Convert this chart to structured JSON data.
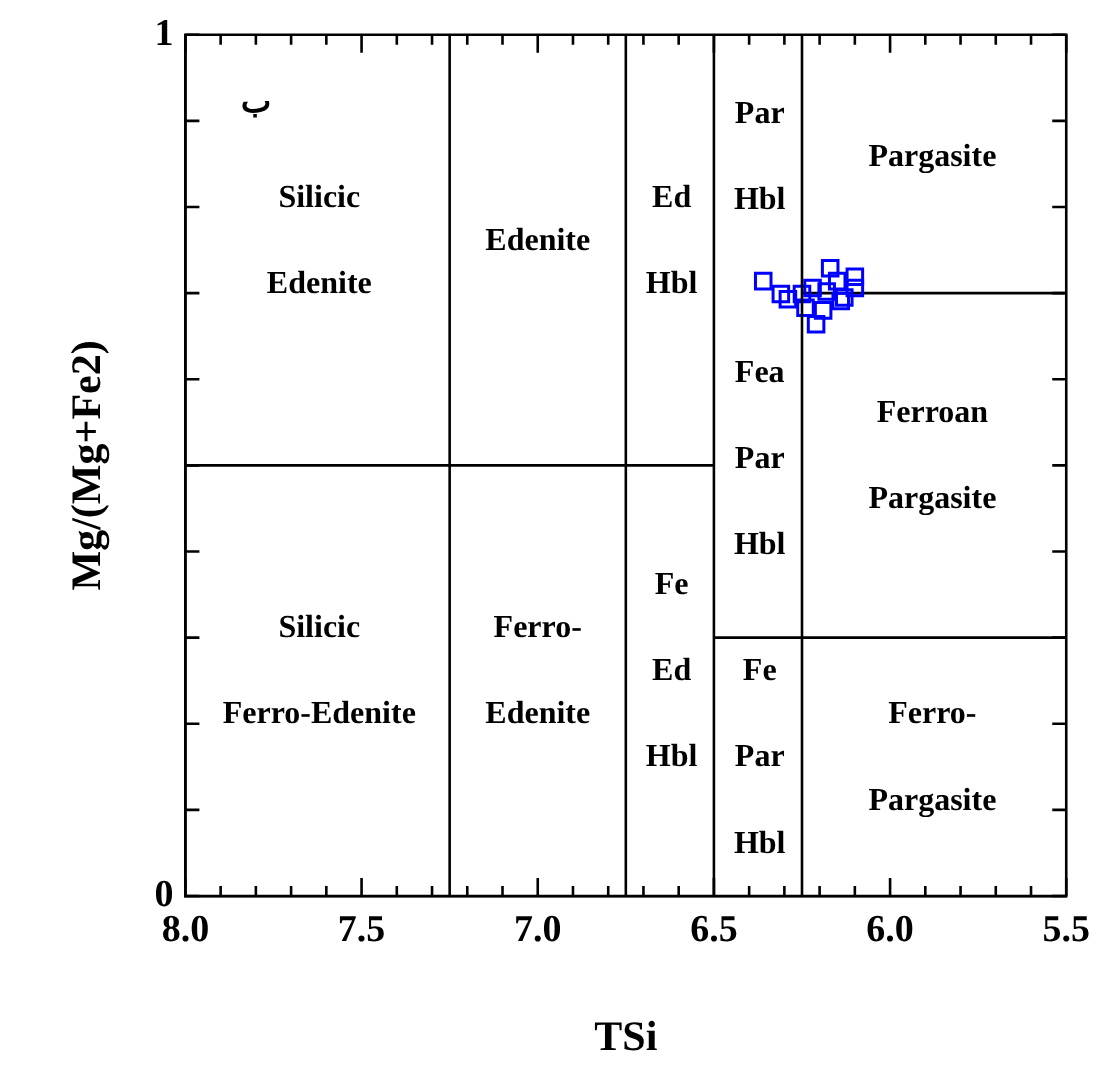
{
  "chart_data": {
    "type": "scatter",
    "xlabel": "TSi",
    "ylabel": "Mg/(Mg+Fe2)",
    "xlim": [
      8,
      5.5
    ],
    "ylim": [
      0,
      1
    ],
    "xticks": [
      {
        "value": 8,
        "label": "8.0"
      },
      {
        "value": 7.9,
        "label": null
      },
      {
        "value": 7.8,
        "label": null
      },
      {
        "value": 7.7,
        "label": null
      },
      {
        "value": 7.6,
        "label": null
      },
      {
        "value": 7.5,
        "label": "7.5"
      },
      {
        "value": 7.4,
        "label": null
      },
      {
        "value": 7.3,
        "label": null
      },
      {
        "value": 7.2,
        "label": null
      },
      {
        "value": 7.1,
        "label": null
      },
      {
        "value": 7,
        "label": "7.0"
      },
      {
        "value": 6.9,
        "label": null
      },
      {
        "value": 6.8,
        "label": null
      },
      {
        "value": 6.7,
        "label": null
      },
      {
        "value": 6.6,
        "label": null
      },
      {
        "value": 6.5,
        "label": "6.5"
      },
      {
        "value": 6.4,
        "label": null
      },
      {
        "value": 6.3,
        "label": null
      },
      {
        "value": 6.2,
        "label": null
      },
      {
        "value": 6.1,
        "label": null
      },
      {
        "value": 6,
        "label": "6.0"
      },
      {
        "value": 5.9,
        "label": null
      },
      {
        "value": 5.8,
        "label": null
      },
      {
        "value": 5.7,
        "label": null
      },
      {
        "value": 5.6,
        "label": null
      },
      {
        "value": 5.5,
        "label": "5.5"
      }
    ],
    "yticks": [
      0,
      {
        "value": 0.1,
        "label": null
      },
      {
        "value": 0.2,
        "label": null
      },
      {
        "value": 0.3,
        "label": null
      },
      {
        "value": 0.4,
        "label": null
      },
      {
        "value": 0.5,
        "label": null
      },
      {
        "value": 0.6,
        "label": null
      },
      {
        "value": 0.7,
        "label": null
      },
      {
        "value": 0.8,
        "label": null
      },
      {
        "value": 0.9,
        "label": null
      },
      1
    ],
    "grid": false,
    "legend": false,
    "series": [
      {
        "type": "scatter",
        "marker": "square",
        "color": "#0000ff",
        "x": [
          6.36,
          6.31,
          6.29,
          6.25,
          6.22,
          6.21,
          6.17,
          6.18,
          6.15,
          6.14,
          6.13,
          6.1,
          6.1,
          6.24,
          6.19
        ],
        "values": [
          0.714,
          0.699,
          0.693,
          0.699,
          0.706,
          0.664,
          0.729,
          0.702,
          0.714,
          0.691,
          0.695,
          0.719,
          0.706,
          0.683,
          0.68
        ]
      },
      {
        "type": "line",
        "marker": "none",
        "color": "#000000",
        "x": [
          8,
          6.5
        ],
        "values": [
          0.5,
          0.5
        ]
      },
      {
        "type": "line",
        "marker": "none",
        "color": "#000000",
        "x": [
          6.25,
          5.5
        ],
        "values": [
          0.7,
          0.7
        ]
      },
      {
        "type": "line",
        "marker": "none",
        "color": "#000000",
        "x": [
          6.5,
          5.5
        ],
        "values": [
          0.3,
          0.3
        ]
      }
    ],
    "ref_lines": [
      {
        "axis": "x",
        "value": 7.25,
        "color": "#000000"
      },
      {
        "axis": "x",
        "value": 6.75,
        "color": "#000000"
      },
      {
        "axis": "x",
        "value": 6.5,
        "color": "#000000"
      },
      {
        "axis": "x",
        "value": 6.25,
        "color": "#000000"
      }
    ],
    "annotations": [
      "ب",
      "Silicic",
      "Edenite",
      "Edenite",
      "Ed",
      "Hbl",
      "Par",
      "Hbl",
      "Pargasite",
      "Fea",
      "Par",
      "Hbl",
      "Ferroan",
      "Pargasite",
      "Silicic",
      "Ferro-Edenite",
      "Ferro-",
      "Edenite",
      "Fe",
      "Ed",
      "Hbl",
      "Fe",
      "Par",
      "Hbl",
      "Ferro-",
      "Pargasite"
    ]
  }
}
